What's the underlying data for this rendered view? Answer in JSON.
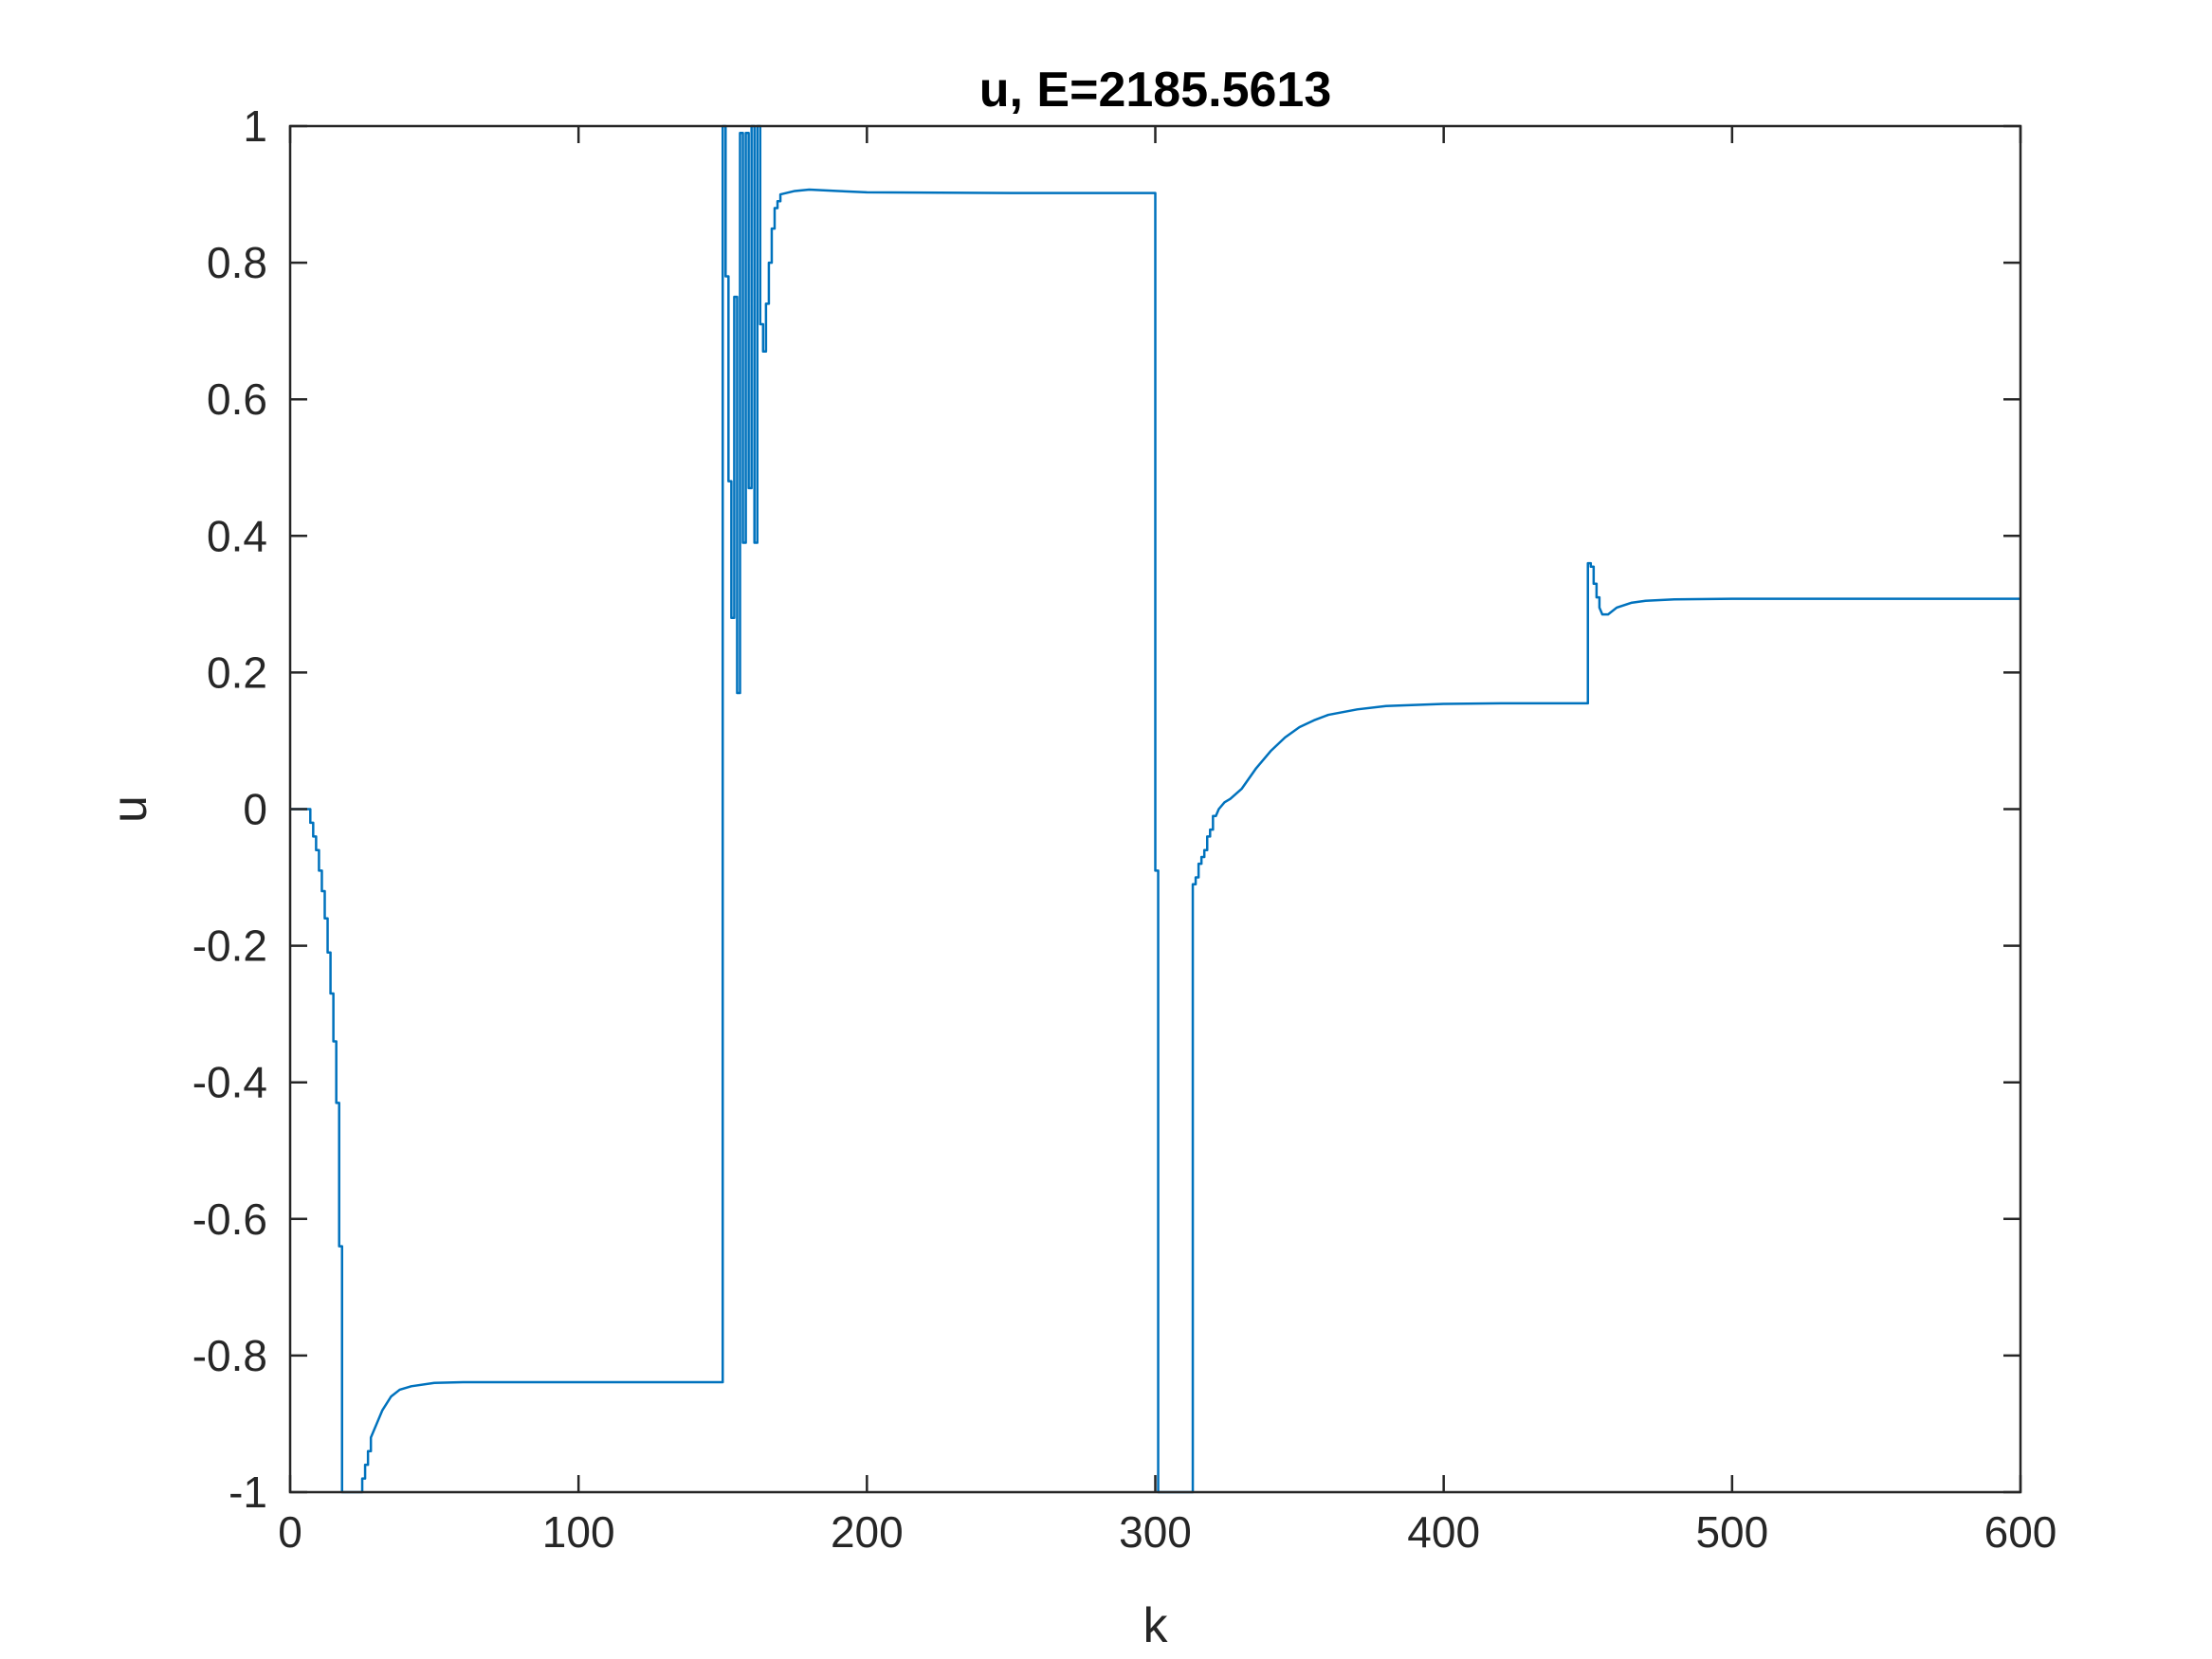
{
  "chart_data": {
    "type": "line",
    "title": "u, E=2185.5613",
    "xlabel": "k",
    "ylabel": "u",
    "xlim": [
      0,
      600
    ],
    "ylim": [
      -1,
      1
    ],
    "xticks": [
      0,
      100,
      200,
      300,
      400,
      500,
      600
    ],
    "yticks": [
      -1,
      -0.8,
      -0.6,
      -0.4,
      -0.2,
      0,
      0.2,
      0.4,
      0.6,
      0.8,
      1
    ],
    "xtick_labels": [
      "0",
      "100",
      "200",
      "300",
      "400",
      "500",
      "600"
    ],
    "ytick_labels": [
      "-1",
      "-0.8",
      "-0.6",
      "-0.4",
      "-0.2",
      "0",
      "0.2",
      "0.4",
      "0.6",
      "0.8",
      "1"
    ],
    "grid": false,
    "line_color": "#0072BD",
    "axes_color": "#262626",
    "series": [
      {
        "points": [
          [
            0,
            0
          ],
          [
            7,
            0
          ],
          [
            7,
            -0.02
          ],
          [
            8,
            -0.02
          ],
          [
            8,
            -0.04
          ],
          [
            9,
            -0.04
          ],
          [
            9,
            -0.06
          ],
          [
            10,
            -0.06
          ],
          [
            10,
            -0.09
          ],
          [
            11,
            -0.09
          ],
          [
            11,
            -0.12
          ],
          [
            12,
            -0.12
          ],
          [
            12,
            -0.16
          ],
          [
            13,
            -0.16
          ],
          [
            13,
            -0.21
          ],
          [
            14,
            -0.21
          ],
          [
            14,
            -0.27
          ],
          [
            15,
            -0.27
          ],
          [
            15,
            -0.34
          ],
          [
            16,
            -0.34
          ],
          [
            16,
            -0.43
          ],
          [
            17,
            -0.43
          ],
          [
            17,
            -0.64
          ],
          [
            18,
            -0.64
          ],
          [
            18,
            -1
          ],
          [
            25,
            -1
          ],
          [
            25,
            -0.98
          ],
          [
            26,
            -0.98
          ],
          [
            26,
            -0.96
          ],
          [
            27,
            -0.96
          ],
          [
            27,
            -0.94
          ],
          [
            28,
            -0.94
          ],
          [
            28,
            -0.92
          ],
          [
            30,
            -0.9
          ],
          [
            32,
            -0.88
          ],
          [
            35,
            -0.86
          ],
          [
            38,
            -0.85
          ],
          [
            42,
            -0.845
          ],
          [
            50,
            -0.84
          ],
          [
            60,
            -0.839
          ],
          [
            100,
            -0.839
          ],
          [
            150,
            -0.839
          ],
          [
            150,
            1
          ],
          [
            151,
            1
          ],
          [
            151,
            0.78
          ],
          [
            152,
            0.78
          ],
          [
            152,
            0.48
          ],
          [
            153,
            0.48
          ],
          [
            153,
            0.28
          ],
          [
            154,
            0.28
          ],
          [
            154,
            0.75
          ],
          [
            155,
            0.75
          ],
          [
            155,
            0.17
          ],
          [
            156,
            0.17
          ],
          [
            156,
            0.99
          ],
          [
            157,
            0.99
          ],
          [
            157,
            0.39
          ],
          [
            158,
            0.39
          ],
          [
            158,
            0.99
          ],
          [
            159,
            0.99
          ],
          [
            159,
            0.47
          ],
          [
            160,
            0.47
          ],
          [
            160,
            1
          ],
          [
            161,
            1
          ],
          [
            161,
            0.39
          ],
          [
            162,
            0.39
          ],
          [
            162,
            1
          ],
          [
            163,
            1
          ],
          [
            163,
            0.71
          ],
          [
            164,
            0.71
          ],
          [
            164,
            0.67
          ],
          [
            165,
            0.67
          ],
          [
            165,
            0.74
          ],
          [
            166,
            0.74
          ],
          [
            166,
            0.8
          ],
          [
            167,
            0.8
          ],
          [
            167,
            0.85
          ],
          [
            168,
            0.85
          ],
          [
            168,
            0.88
          ],
          [
            169,
            0.88
          ],
          [
            169,
            0.89
          ],
          [
            170,
            0.89
          ],
          [
            170,
            0.9
          ],
          [
            175,
            0.905
          ],
          [
            180,
            0.907
          ],
          [
            190,
            0.905
          ],
          [
            200,
            0.903
          ],
          [
            250,
            0.902
          ],
          [
            300,
            0.902
          ],
          [
            300,
            -0.09
          ],
          [
            301,
            -0.09
          ],
          [
            301,
            -1
          ],
          [
            313,
            -1
          ],
          [
            313,
            -0.11
          ],
          [
            314,
            -0.11
          ],
          [
            314,
            -0.1
          ],
          [
            315,
            -0.1
          ],
          [
            315,
            -0.08
          ],
          [
            316,
            -0.08
          ],
          [
            316,
            -0.07
          ],
          [
            317,
            -0.07
          ],
          [
            317,
            -0.06
          ],
          [
            318,
            -0.06
          ],
          [
            318,
            -0.04
          ],
          [
            319,
            -0.04
          ],
          [
            319,
            -0.03
          ],
          [
            320,
            -0.03
          ],
          [
            320,
            -0.01
          ],
          [
            321,
            -0.01
          ],
          [
            322,
            0.0
          ],
          [
            324,
            0.01
          ],
          [
            326,
            0.015
          ],
          [
            330,
            0.03
          ],
          [
            335,
            0.06
          ],
          [
            340,
            0.085
          ],
          [
            345,
            0.105
          ],
          [
            350,
            0.12
          ],
          [
            355,
            0.13
          ],
          [
            360,
            0.138
          ],
          [
            370,
            0.146
          ],
          [
            380,
            0.151
          ],
          [
            400,
            0.154
          ],
          [
            420,
            0.155
          ],
          [
            450,
            0.155
          ],
          [
            450,
            0.36
          ],
          [
            451,
            0.36
          ],
          [
            451,
            0.355
          ],
          [
            452,
            0.355
          ],
          [
            452,
            0.33
          ],
          [
            453,
            0.33
          ],
          [
            453,
            0.31
          ],
          [
            454,
            0.31
          ],
          [
            454,
            0.295
          ],
          [
            455,
            0.285
          ],
          [
            457,
            0.285
          ],
          [
            460,
            0.295
          ],
          [
            465,
            0.302
          ],
          [
            470,
            0.305
          ],
          [
            480,
            0.307
          ],
          [
            500,
            0.308
          ],
          [
            600,
            0.308
          ]
        ]
      }
    ]
  }
}
